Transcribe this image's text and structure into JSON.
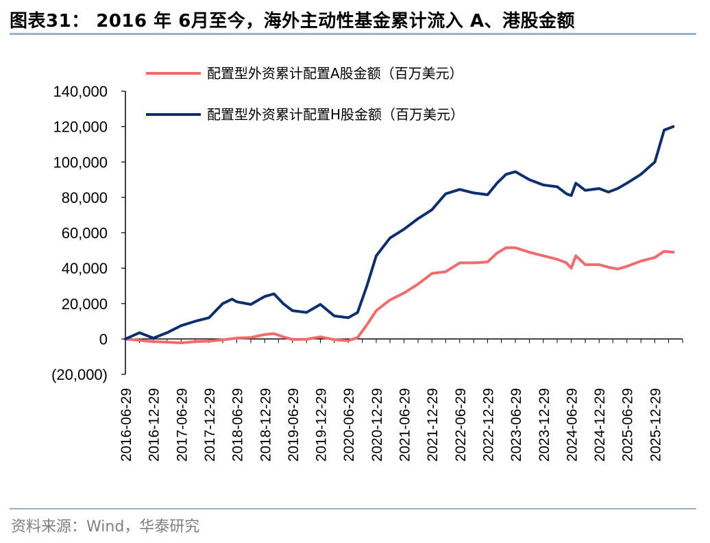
{
  "title": "图表31： 2016 年 6月至今，海外主动性基金累计流入 A、港股金额",
  "source": "资料来源：Wind，华泰研究",
  "chart_data": {
    "type": "line",
    "title": "图表31： 2016 年 6月至今，海外主动性基金累计流入 A、港股金额",
    "xlabel": "",
    "ylabel": "",
    "ylim": [
      -20000,
      140000
    ],
    "xlim": [
      "2016-06-29",
      "2026-06-29"
    ],
    "yticks": [
      -20000,
      0,
      20000,
      40000,
      60000,
      80000,
      100000,
      120000,
      140000
    ],
    "ytick_labels": [
      "(20,000)",
      "0",
      "20,000",
      "40,000",
      "60,000",
      "80,000",
      "100,000",
      "120,000",
      "140,000"
    ],
    "xtick_labels": [
      "2016-06-29",
      "2016-12-29",
      "2017-06-29",
      "2017-12-29",
      "2018-06-29",
      "2018-12-29",
      "2019-06-29",
      "2019-12-29",
      "2020-06-29",
      "2020-12-29",
      "2021-06-29",
      "2021-12-29",
      "2022-06-29",
      "2022-12-29",
      "2023-06-29",
      "2023-12-29",
      "2024-06-29",
      "2024-12-29",
      "2025-06-29",
      "2025-12-29"
    ],
    "legend_position": "top-left",
    "grid": false,
    "colors": {
      "A": "#f26b6b",
      "H": "#0d2f6e"
    },
    "series": [
      {
        "name": "配置型外资累计配置A股金额（百万美元）",
        "points": [
          [
            "2016-06-29",
            0
          ],
          [
            "2016-09-29",
            -800
          ],
          [
            "2016-12-29",
            -1500
          ],
          [
            "2017-03-29",
            -1800
          ],
          [
            "2017-06-29",
            -2200
          ],
          [
            "2017-09-29",
            -1500
          ],
          [
            "2017-12-29",
            -1200
          ],
          [
            "2018-03-29",
            -500
          ],
          [
            "2018-06-29",
            500
          ],
          [
            "2018-09-29",
            800
          ],
          [
            "2018-12-29",
            2500
          ],
          [
            "2019-02-28",
            3000
          ],
          [
            "2019-04-29",
            1200
          ],
          [
            "2019-06-29",
            -300
          ],
          [
            "2019-09-29",
            -200
          ],
          [
            "2019-12-29",
            1200
          ],
          [
            "2020-03-29",
            -400
          ],
          [
            "2020-06-29",
            -1000
          ],
          [
            "2020-08-29",
            800
          ],
          [
            "2020-10-29",
            8000
          ],
          [
            "2020-12-29",
            16000
          ],
          [
            "2021-03-29",
            22000
          ],
          [
            "2021-06-29",
            26000
          ],
          [
            "2021-09-29",
            31000
          ],
          [
            "2021-12-29",
            37000
          ],
          [
            "2022-03-29",
            38000
          ],
          [
            "2022-06-29",
            43000
          ],
          [
            "2022-09-29",
            43000
          ],
          [
            "2022-12-29",
            43500
          ],
          [
            "2023-02-28",
            48500
          ],
          [
            "2023-04-29",
            51500
          ],
          [
            "2023-06-29",
            51500
          ],
          [
            "2023-09-29",
            49000
          ],
          [
            "2023-12-29",
            47000
          ],
          [
            "2024-03-29",
            45000
          ],
          [
            "2024-05-29",
            43000
          ],
          [
            "2024-06-29",
            40000
          ],
          [
            "2024-07-29",
            47000
          ],
          [
            "2024-09-29",
            42000
          ],
          [
            "2024-12-29",
            42000
          ],
          [
            "2025-02-28",
            40500
          ],
          [
            "2025-04-29",
            39500
          ],
          [
            "2025-06-29",
            41000
          ],
          [
            "2025-09-29",
            44000
          ],
          [
            "2025-12-29",
            46000
          ],
          [
            "2026-02-28",
            49500
          ],
          [
            "2026-04-29",
            49000
          ]
        ]
      },
      {
        "name": "配置型外资累计配置H股金额（百万美元）",
        "points": [
          [
            "2016-06-29",
            0
          ],
          [
            "2016-09-29",
            3500
          ],
          [
            "2016-12-29",
            500
          ],
          [
            "2017-03-29",
            3500
          ],
          [
            "2017-06-29",
            7500
          ],
          [
            "2017-09-29",
            10000
          ],
          [
            "2017-12-29",
            12000
          ],
          [
            "2018-03-29",
            20000
          ],
          [
            "2018-05-29",
            22500
          ],
          [
            "2018-06-29",
            21000
          ],
          [
            "2018-09-29",
            19500
          ],
          [
            "2018-12-29",
            24000
          ],
          [
            "2019-02-28",
            25500
          ],
          [
            "2019-04-29",
            20000
          ],
          [
            "2019-06-29",
            16000
          ],
          [
            "2019-09-29",
            15000
          ],
          [
            "2019-12-29",
            19500
          ],
          [
            "2020-03-29",
            13000
          ],
          [
            "2020-06-29",
            12000
          ],
          [
            "2020-08-29",
            15000
          ],
          [
            "2020-10-29",
            30000
          ],
          [
            "2020-12-29",
            47000
          ],
          [
            "2021-03-29",
            57000
          ],
          [
            "2021-06-29",
            62000
          ],
          [
            "2021-09-29",
            68000
          ],
          [
            "2021-12-29",
            73000
          ],
          [
            "2022-03-29",
            82000
          ],
          [
            "2022-06-29",
            84500
          ],
          [
            "2022-09-29",
            82500
          ],
          [
            "2022-12-29",
            81500
          ],
          [
            "2023-02-28",
            88000
          ],
          [
            "2023-04-29",
            93000
          ],
          [
            "2023-06-29",
            94500
          ],
          [
            "2023-09-29",
            90000
          ],
          [
            "2023-12-29",
            87000
          ],
          [
            "2024-03-29",
            86000
          ],
          [
            "2024-05-29",
            82000
          ],
          [
            "2024-06-29",
            81000
          ],
          [
            "2024-07-29",
            88000
          ],
          [
            "2024-09-29",
            84000
          ],
          [
            "2024-12-29",
            85000
          ],
          [
            "2025-02-28",
            83000
          ],
          [
            "2025-04-29",
            85000
          ],
          [
            "2025-06-29",
            88000
          ],
          [
            "2025-09-29",
            93000
          ],
          [
            "2025-12-29",
            100000
          ],
          [
            "2026-02-28",
            118000
          ],
          [
            "2026-04-29",
            120000
          ]
        ]
      }
    ]
  }
}
